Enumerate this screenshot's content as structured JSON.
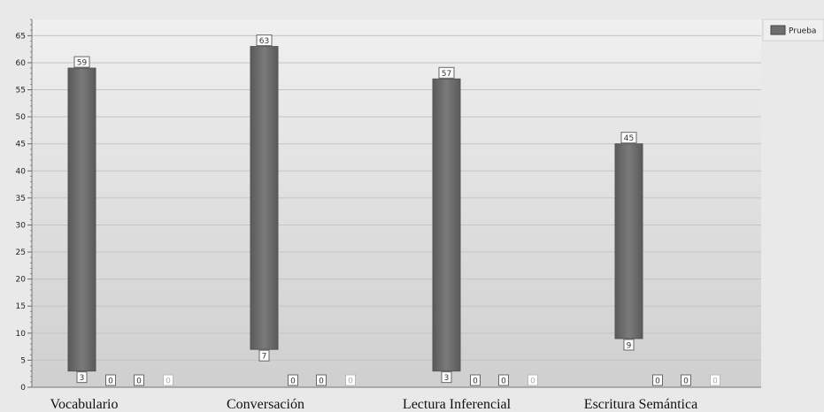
{
  "chart_data": {
    "type": "bar",
    "subtype": "floating-range",
    "categories": [
      "Vocabulario",
      "Conversación",
      "Lectura Inferencial",
      "Escritura Semántica"
    ],
    "series": [
      {
        "name": "Prueba",
        "low": [
          3,
          7,
          3,
          9
        ],
        "high": [
          59,
          63,
          57,
          45
        ]
      }
    ],
    "empty_labels": [
      [
        "0",
        "0",
        "0"
      ],
      [
        "0",
        "0",
        "0"
      ],
      [
        "0",
        "0",
        "0"
      ],
      [
        "0",
        "0",
        "0"
      ]
    ],
    "ylim": [
      0,
      68
    ],
    "yticks": [
      0,
      5,
      10,
      15,
      20,
      25,
      30,
      35,
      40,
      45,
      50,
      55,
      60,
      65
    ],
    "grid": true,
    "legend": "top-right",
    "colors": {
      "bar": "#6f6f6f",
      "bar_dark": "#555555",
      "plot_bg_top": "#f0f0f0",
      "plot_bg_bottom": "#cfcfcf",
      "grid": "#c4c4c4"
    }
  }
}
